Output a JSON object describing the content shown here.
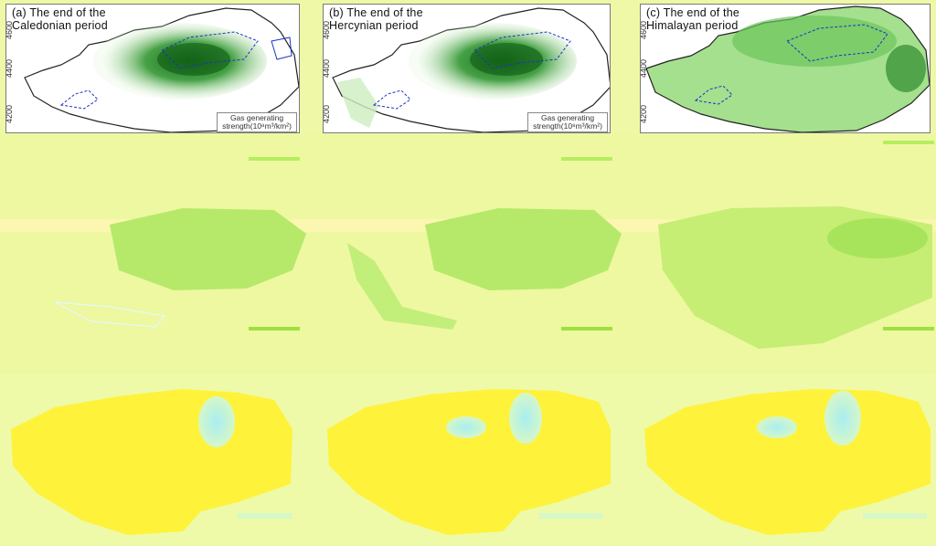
{
  "panels": [
    {
      "id": "a",
      "title_line1": "(a) The end of the",
      "title_line2": "Caledonian period"
    },
    {
      "id": "b",
      "title_line1": "(b) The end of the",
      "title_line2": "Hercynian period"
    },
    {
      "id": "c",
      "title_line1": "(c) The end of the",
      "title_line2": "Himalayan period"
    }
  ],
  "y_axis_ticks": [
    "4600",
    "4400",
    "4200"
  ],
  "legend": {
    "line1": "Gas generating",
    "line2": "strength(10⁸m³/km²)"
  },
  "colors": {
    "background": "#eef8a6",
    "green_dark": "#1d7a1d",
    "green_light": "#cfeec0",
    "outline_blue": "#1a33c8",
    "yellow": "#fff23a",
    "cyan": "#b8f4f0"
  }
}
